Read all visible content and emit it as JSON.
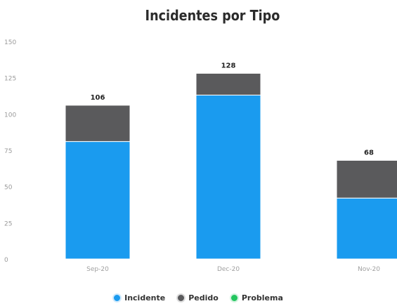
{
  "chart_data": {
    "type": "bar",
    "stacked": true,
    "title": "Incidentes por Tipo",
    "categories": [
      "Sep-20",
      "Dec-20",
      "Nov-20"
    ],
    "series": [
      {
        "name": "Incidente",
        "color": "#1a9bef",
        "values": [
          81,
          113,
          42
        ]
      },
      {
        "name": "Pedido",
        "color": "#5a5a5c",
        "values": [
          25,
          15,
          26
        ]
      },
      {
        "name": "Problema",
        "color": "#22c55e",
        "values": [
          0,
          0,
          0
        ]
      }
    ],
    "totals": [
      106,
      128,
      68
    ],
    "y_ticks": [
      "150",
      "125",
      "100",
      "75",
      "50",
      "25",
      "0"
    ],
    "ylim": [
      0,
      150
    ],
    "grid": false,
    "legend_position": "bottom"
  }
}
